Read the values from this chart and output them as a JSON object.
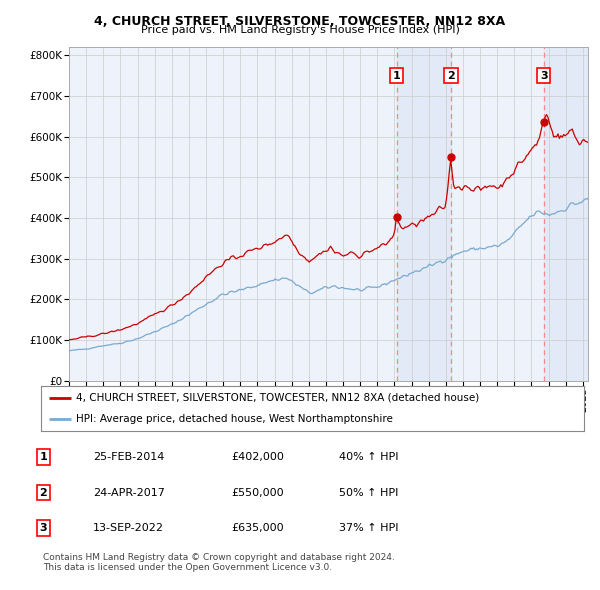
{
  "title1": "4, CHURCH STREET, SILVERSTONE, TOWCESTER, NN12 8XA",
  "title2": "Price paid vs. HM Land Registry's House Price Index (HPI)",
  "ylabel_ticks": [
    "£0",
    "£100K",
    "£200K",
    "£300K",
    "£400K",
    "£500K",
    "£600K",
    "£700K",
    "£800K"
  ],
  "ytick_values": [
    0,
    100000,
    200000,
    300000,
    400000,
    500000,
    600000,
    700000,
    800000
  ],
  "ylim": [
    0,
    820000
  ],
  "xlim_start": 1995.0,
  "xlim_end": 2025.3,
  "sale_dates_year": [
    2014.12,
    2017.3,
    2022.71
  ],
  "sale_prices": [
    402000,
    550000,
    635000
  ],
  "sale_labels": [
    "1",
    "2",
    "3"
  ],
  "sale_info": [
    {
      "num": "1",
      "date": "25-FEB-2014",
      "price": "£402,000",
      "change": "40% ↑ HPI"
    },
    {
      "num": "2",
      "date": "24-APR-2017",
      "price": "£550,000",
      "change": "50% ↑ HPI"
    },
    {
      "num": "3",
      "date": "13-SEP-2022",
      "price": "£635,000",
      "change": "37% ↑ HPI"
    }
  ],
  "legend_line1": "4, CHURCH STREET, SILVERSTONE, TOWCESTER, NN12 8XA (detached house)",
  "legend_line2": "HPI: Average price, detached house, West Northamptonshire",
  "footer1": "Contains HM Land Registry data © Crown copyright and database right 2024.",
  "footer2": "This data is licensed under the Open Government Licence v3.0.",
  "property_color": "#cc0000",
  "hpi_color": "#7aaad0",
  "background_color": "#ffffff",
  "plot_bg_color": "#eef2fb",
  "grid_color": "#cccccc",
  "shade_color": "#dce8f5"
}
